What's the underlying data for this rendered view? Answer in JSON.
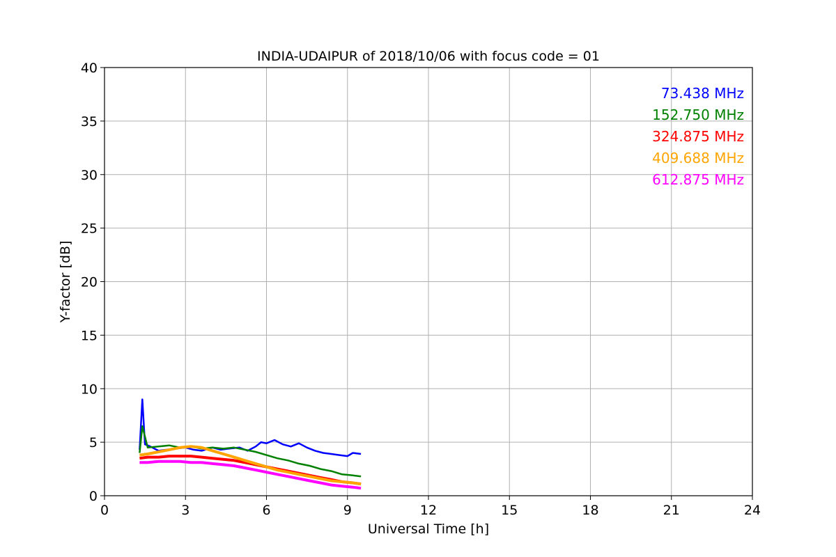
{
  "chart_data": {
    "type": "line",
    "title": "INDIA-UDAIPUR of 2018/10/06 with focus code = 01",
    "xlabel": "Universal Time [h]",
    "ylabel": "Y-factor [dB]",
    "xlim": [
      0,
      24
    ],
    "ylim": [
      0,
      40
    ],
    "xticks": [
      0,
      3,
      6,
      9,
      12,
      15,
      18,
      21,
      24
    ],
    "yticks": [
      0,
      5,
      10,
      15,
      20,
      25,
      30,
      35,
      40
    ],
    "grid": true,
    "legend_position": "top-right",
    "series": [
      {
        "name": "73.438 MHz",
        "color": "#0000ff",
        "x": [
          1.3,
          1.4,
          1.5,
          1.7,
          2.0,
          2.3,
          2.6,
          3.0,
          3.3,
          3.6,
          4.0,
          4.3,
          4.6,
          5.0,
          5.3,
          5.6,
          5.8,
          6.0,
          6.3,
          6.6,
          6.9,
          7.2,
          7.5,
          7.8,
          8.1,
          8.4,
          8.7,
          9.0,
          9.2,
          9.5
        ],
        "y": [
          4.3,
          9.0,
          4.8,
          4.6,
          4.2,
          4.3,
          4.4,
          4.5,
          4.3,
          4.2,
          4.5,
          4.3,
          4.4,
          4.5,
          4.2,
          4.6,
          5.0,
          4.9,
          5.2,
          4.8,
          4.6,
          4.9,
          4.5,
          4.2,
          4.0,
          3.9,
          3.8,
          3.7,
          4.0,
          3.9
        ]
      },
      {
        "name": "152.750 MHz",
        "color": "#008000",
        "x": [
          1.3,
          1.4,
          1.6,
          2.0,
          2.4,
          2.8,
          3.2,
          3.6,
          4.0,
          4.4,
          4.8,
          5.2,
          5.6,
          6.0,
          6.4,
          6.8,
          7.2,
          7.6,
          8.0,
          8.4,
          8.8,
          9.2,
          9.5
        ],
        "y": [
          4.0,
          6.5,
          4.5,
          4.6,
          4.7,
          4.5,
          4.6,
          4.4,
          4.5,
          4.4,
          4.5,
          4.3,
          4.1,
          3.8,
          3.5,
          3.3,
          3.0,
          2.8,
          2.5,
          2.3,
          2.0,
          1.9,
          1.8
        ]
      },
      {
        "name": "324.875 MHz",
        "color": "#ff0000",
        "x": [
          1.3,
          1.6,
          2.0,
          2.4,
          2.8,
          3.2,
          3.6,
          4.0,
          4.4,
          4.8,
          5.2,
          5.6,
          6.0,
          6.4,
          6.8,
          7.2,
          7.6,
          8.0,
          8.4,
          8.8,
          9.2,
          9.5
        ],
        "y": [
          3.5,
          3.6,
          3.6,
          3.7,
          3.7,
          3.7,
          3.6,
          3.5,
          3.4,
          3.3,
          3.1,
          2.9,
          2.7,
          2.5,
          2.3,
          2.1,
          1.9,
          1.7,
          1.5,
          1.3,
          1.2,
          1.1
        ]
      },
      {
        "name": "409.688 MHz",
        "color": "#ffa500",
        "x": [
          1.3,
          1.6,
          2.0,
          2.4,
          2.8,
          3.2,
          3.6,
          4.0,
          4.4,
          4.8,
          5.2,
          5.6,
          6.0,
          6.4,
          6.8,
          7.2,
          7.6,
          8.0,
          8.4,
          8.8,
          9.2,
          9.5
        ],
        "y": [
          3.8,
          3.9,
          4.1,
          4.3,
          4.5,
          4.6,
          4.5,
          4.2,
          3.9,
          3.6,
          3.3,
          3.0,
          2.7,
          2.4,
          2.2,
          2.0,
          1.8,
          1.6,
          1.4,
          1.3,
          1.2,
          1.1
        ]
      },
      {
        "name": "612.875 MHz",
        "color": "#ff00ff",
        "x": [
          1.3,
          1.6,
          2.0,
          2.4,
          2.8,
          3.2,
          3.6,
          4.0,
          4.4,
          4.8,
          5.2,
          5.6,
          6.0,
          6.4,
          6.8,
          7.2,
          7.6,
          8.0,
          8.4,
          8.8,
          9.2,
          9.5
        ],
        "y": [
          3.1,
          3.1,
          3.2,
          3.2,
          3.2,
          3.1,
          3.1,
          3.0,
          2.9,
          2.8,
          2.6,
          2.4,
          2.2,
          2.0,
          1.8,
          1.6,
          1.4,
          1.2,
          1.0,
          0.9,
          0.8,
          0.7
        ]
      }
    ]
  }
}
